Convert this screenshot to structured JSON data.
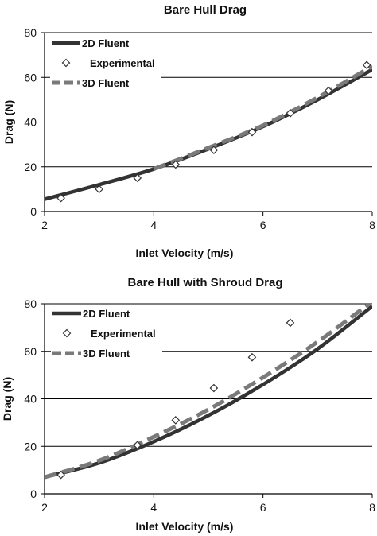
{
  "chart_data": [
    {
      "type": "line",
      "title": "Bare Hull Drag",
      "xlabel": "Inlet Velocity (m/s)",
      "ylabel": "Drag (N)",
      "xlim": [
        2,
        8
      ],
      "ylim": [
        0,
        80
      ],
      "xticks": [
        "2",
        "4",
        "6",
        "8"
      ],
      "yticks": [
        "0",
        "20",
        "40",
        "60",
        "80"
      ],
      "grid": "horizontal",
      "legend_position": "top-left",
      "series": [
        {
          "name": "2D Fluent",
          "style": "solid",
          "color": "#333333",
          "x": [
            2,
            3,
            4,
            5,
            6,
            7,
            8
          ],
          "y": [
            5.5,
            12,
            19,
            28,
            38,
            50,
            63.5
          ]
        },
        {
          "name": "Experimental",
          "style": "marker",
          "color": "#333333",
          "x": [
            2.3,
            3.0,
            3.7,
            4.4,
            5.1,
            5.8,
            6.5,
            7.2,
            7.9
          ],
          "y": [
            6,
            10,
            15,
            21,
            27.5,
            35.5,
            44,
            54,
            65.5
          ]
        },
        {
          "name": "3D Fluent",
          "style": "dashed",
          "color": "#7a7a7a",
          "x": [
            4,
            5,
            6,
            7,
            8
          ],
          "y": [
            19,
            28.5,
            38.5,
            51,
            65
          ]
        }
      ]
    },
    {
      "type": "line",
      "title": "Bare Hull with Shroud Drag",
      "xlabel": "Inlet Velocity (m/s)",
      "ylabel": "Drag (N)",
      "xlim": [
        2,
        8
      ],
      "ylim": [
        0,
        80
      ],
      "xticks": [
        "2",
        "4",
        "6",
        "8"
      ],
      "yticks": [
        "0",
        "20",
        "40",
        "60",
        "80"
      ],
      "grid": "horizontal",
      "legend_position": "top-left",
      "series": [
        {
          "name": "2D Fluent",
          "style": "solid",
          "color": "#333333",
          "x": [
            2,
            3,
            4,
            5,
            6,
            7,
            8
          ],
          "y": [
            7,
            13,
            22,
            33,
            46,
            61,
            79
          ]
        },
        {
          "name": "Experimental",
          "style": "marker",
          "color": "#333333",
          "x": [
            2.3,
            3.7,
            4.4,
            5.1,
            5.8,
            6.5
          ],
          "y": [
            8,
            20.5,
            31,
            44.5,
            57.5,
            72
          ]
        },
        {
          "name": "3D Fluent",
          "style": "dashed",
          "color": "#7a7a7a",
          "x": [
            2,
            3,
            4,
            5,
            6,
            7,
            8
          ],
          "y": [
            7,
            14,
            24,
            35.5,
            49,
            64,
            81
          ]
        }
      ]
    }
  ]
}
